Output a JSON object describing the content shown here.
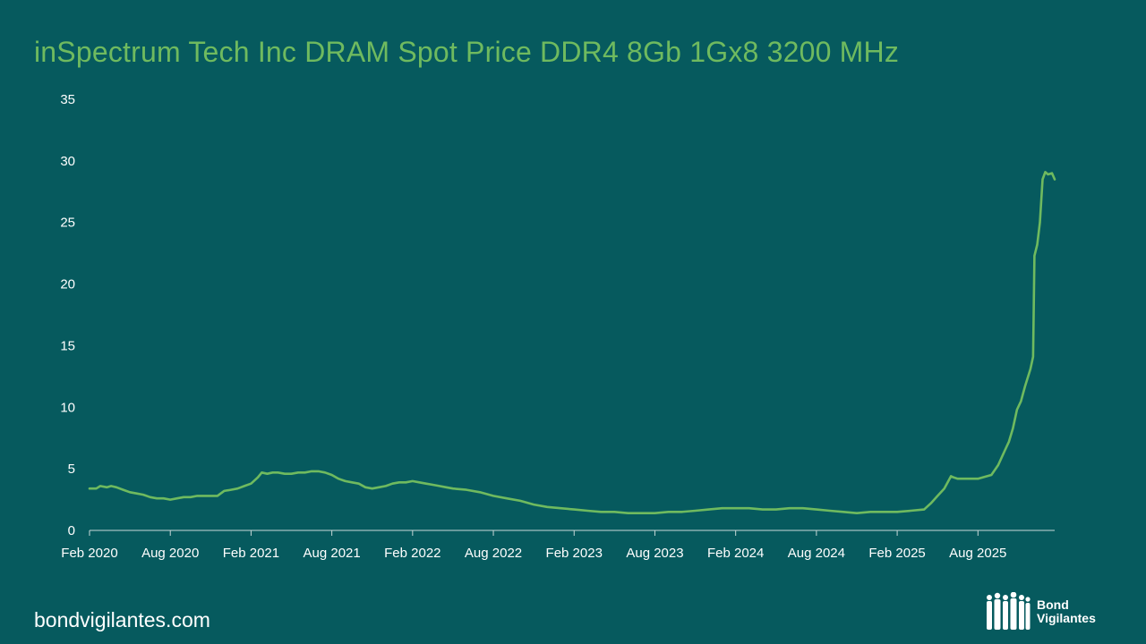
{
  "title": "inSpectrum Tech Inc DRAM Spot Price DDR4 8Gb 1Gx8 3200 MHz",
  "footer": {
    "url": "bondvigilantes.com"
  },
  "logo": {
    "line1": "Bond",
    "line2": "Vigilantes",
    "icon": "people-silhouette-icon"
  },
  "colors": {
    "background": "#065a5e",
    "accent": "#6fba5f",
    "text": "#ffffff"
  },
  "chart_data": {
    "type": "line",
    "title": "inSpectrum Tech Inc DRAM Spot Price DDR4 8Gb 1Gx8 3200 MHz",
    "xlabel": "",
    "ylabel": "",
    "ylim": [
      0,
      35
    ],
    "yticks": [
      0,
      5,
      10,
      15,
      20,
      25,
      30,
      35
    ],
    "xlim": [
      0,
      71.7
    ],
    "xticks": [
      {
        "pos": 0,
        "label": "Feb 2020"
      },
      {
        "pos": 6,
        "label": "Aug 2020"
      },
      {
        "pos": 12,
        "label": "Feb 2021"
      },
      {
        "pos": 18,
        "label": "Aug 2021"
      },
      {
        "pos": 24,
        "label": "Feb 2022"
      },
      {
        "pos": 30,
        "label": "Aug 2022"
      },
      {
        "pos": 36,
        "label": "Feb 2023"
      },
      {
        "pos": 42,
        "label": "Aug 2023"
      },
      {
        "pos": 48,
        "label": "Feb 2024"
      },
      {
        "pos": 54,
        "label": "Aug 2024"
      },
      {
        "pos": 60,
        "label": "Feb 2025"
      },
      {
        "pos": 66,
        "label": "Aug 2025"
      }
    ],
    "x_unit": "months since Feb 2020",
    "grid": false,
    "series": [
      {
        "name": "DRAM Spot Price DDR4 8Gb 1Gx8 3200 MHz",
        "color": "#6fba5f",
        "x": [
          0,
          0.5,
          0.8,
          1.3,
          1.6,
          2.0,
          2.5,
          3.0,
          3.5,
          4.0,
          4.5,
          5.0,
          5.5,
          6.0,
          6.5,
          7.0,
          7.5,
          8.0,
          8.5,
          9.0,
          9.5,
          10.0,
          10.5,
          11.0,
          11.5,
          12.0,
          12.5,
          12.8,
          13.2,
          13.6,
          14.0,
          14.5,
          15.0,
          15.5,
          16.0,
          16.5,
          17.0,
          17.5,
          18.0,
          18.5,
          19.0,
          19.5,
          20.0,
          20.5,
          21.0,
          21.5,
          22.0,
          22.5,
          23.0,
          23.5,
          24.0,
          24.5,
          25.0,
          25.5,
          26.0,
          26.5,
          27.0,
          28.0,
          29.0,
          30.0,
          31.0,
          32.0,
          33.0,
          34.0,
          35.0,
          36.0,
          37.0,
          38.0,
          39.0,
          40.0,
          41.0,
          42.0,
          43.0,
          44.0,
          45.0,
          46.0,
          47.0,
          48.0,
          49.0,
          50.0,
          51.0,
          52.0,
          53.0,
          54.0,
          55.0,
          56.0,
          57.0,
          58.0,
          59.0,
          60.0,
          61.0,
          62.0,
          62.5,
          63.0,
          63.5,
          64.0,
          64.2,
          64.5,
          65.0,
          66.0,
          67.0,
          67.5,
          68.0,
          68.3,
          68.6,
          68.9,
          69.2,
          69.5,
          69.7,
          69.9,
          70.1,
          70.2,
          70.4,
          70.6,
          70.8,
          71.0,
          71.2,
          71.5,
          71.7
        ],
        "values": [
          3.4,
          3.4,
          3.6,
          3.5,
          3.6,
          3.5,
          3.3,
          3.1,
          3.0,
          2.9,
          2.7,
          2.6,
          2.6,
          2.5,
          2.6,
          2.7,
          2.7,
          2.8,
          2.8,
          2.8,
          2.8,
          3.2,
          3.3,
          3.4,
          3.6,
          3.8,
          4.3,
          4.7,
          4.6,
          4.7,
          4.7,
          4.6,
          4.6,
          4.7,
          4.7,
          4.8,
          4.8,
          4.7,
          4.5,
          4.2,
          4.0,
          3.9,
          3.8,
          3.5,
          3.4,
          3.5,
          3.6,
          3.8,
          3.9,
          3.9,
          4.0,
          3.9,
          3.8,
          3.7,
          3.6,
          3.5,
          3.4,
          3.3,
          3.1,
          2.8,
          2.6,
          2.4,
          2.1,
          1.9,
          1.8,
          1.7,
          1.6,
          1.5,
          1.5,
          1.4,
          1.4,
          1.4,
          1.5,
          1.5,
          1.6,
          1.7,
          1.8,
          1.8,
          1.8,
          1.7,
          1.7,
          1.8,
          1.8,
          1.7,
          1.6,
          1.5,
          1.4,
          1.5,
          1.5,
          1.5,
          1.6,
          1.7,
          2.2,
          2.8,
          3.4,
          4.4,
          4.3,
          4.2,
          4.2,
          4.2,
          4.5,
          5.3,
          6.5,
          7.2,
          8.3,
          9.8,
          10.5,
          11.7,
          12.4,
          13.1,
          14.1,
          22.3,
          23.2,
          25.0,
          28.5,
          29.1,
          28.9,
          29.0,
          28.5
        ]
      }
    ]
  }
}
